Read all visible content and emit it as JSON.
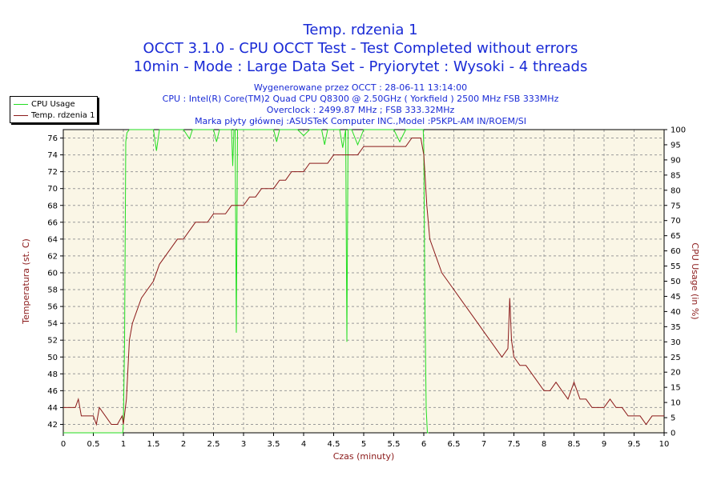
{
  "header": {
    "title": "Temp. rdzenia 1",
    "subtitle1": "OCCT 3.1.0 - CPU OCCT Test - Test Completed without errors",
    "subtitle2": "10min - Mode : Large Data Set - Pryiorytet : Wysoki - 4 threads"
  },
  "info": {
    "generated": "Wygenerowane przez OCCT : 28-06-11 13:14:00",
    "cpu": "CPU : Intel(R) Core(TM)2 Quad CPU Q8300 @ 2.50GHz ( Yorkfield ) 2500 MHz FSB 333MHz",
    "overclock": "Overclock : 2499.87 MHz ; FSB 333.32MHz",
    "board": "Marka płyty głównej :ASUSTeK Computer INC.,Model :P5KPL-AM IN/ROEM/SI"
  },
  "colors": {
    "cpu_usage": "#22dd22",
    "temp": "#8b1a1a",
    "plot_bg": "#faf6e6",
    "grid": "#9a9a9a"
  },
  "chart_data": {
    "type": "line",
    "xlabel": "Czas (minuty)",
    "ylabel_left": "Temperatura (st. C)",
    "ylabel_right": "CPU Usage (in %)",
    "xlim": [
      0,
      10
    ],
    "ylim_left": [
      41,
      77
    ],
    "ylim_right": [
      0,
      100
    ],
    "x_ticks": [
      "0",
      "0.5",
      "1",
      "1.5",
      "2",
      "2.5",
      "3",
      "3.5",
      "4",
      "4.5",
      "5",
      "5.5",
      "6",
      "6.5",
      "7",
      "7.5",
      "8",
      "8.5",
      "9",
      "9.5",
      "10"
    ],
    "y_left_ticks": [
      "42",
      "44",
      "46",
      "48",
      "50",
      "52",
      "54",
      "56",
      "58",
      "60",
      "62",
      "64",
      "66",
      "68",
      "70",
      "72",
      "74",
      "76"
    ],
    "y_right_ticks": [
      "0",
      "5",
      "10",
      "15",
      "20",
      "25",
      "30",
      "35",
      "40",
      "45",
      "50",
      "55",
      "60",
      "65",
      "70",
      "75",
      "80",
      "85",
      "90",
      "95",
      "100"
    ],
    "grid": true,
    "legend_position": "top-left",
    "series": [
      {
        "name": "CPU Usage",
        "axis": "right",
        "points": [
          [
            0,
            0
          ],
          [
            0.99,
            0
          ],
          [
            1.0,
            3
          ],
          [
            1.02,
            30
          ],
          [
            1.04,
            96
          ],
          [
            1.06,
            99
          ],
          [
            1.1,
            100
          ],
          [
            1.5,
            100
          ],
          [
            1.55,
            93
          ],
          [
            1.6,
            100
          ],
          [
            2.0,
            100
          ],
          [
            2.1,
            97
          ],
          [
            2.15,
            100
          ],
          [
            2.5,
            100
          ],
          [
            2.55,
            96
          ],
          [
            2.6,
            100
          ],
          [
            2.8,
            100
          ],
          [
            2.82,
            88
          ],
          [
            2.84,
            100
          ],
          [
            2.86,
            100
          ],
          [
            2.88,
            33
          ],
          [
            2.9,
            100
          ],
          [
            3.1,
            100
          ],
          [
            3.5,
            100
          ],
          [
            3.55,
            96
          ],
          [
            3.6,
            100
          ],
          [
            3.9,
            100
          ],
          [
            4.0,
            98
          ],
          [
            4.1,
            100
          ],
          [
            4.3,
            100
          ],
          [
            4.35,
            95
          ],
          [
            4.4,
            100
          ],
          [
            4.6,
            100
          ],
          [
            4.65,
            94
          ],
          [
            4.7,
            100
          ],
          [
            4.72,
            30
          ],
          [
            4.74,
            100
          ],
          [
            4.8,
            100
          ],
          [
            4.9,
            95
          ],
          [
            5.0,
            100
          ],
          [
            5.5,
            100
          ],
          [
            5.6,
            96
          ],
          [
            5.7,
            100
          ],
          [
            5.99,
            100
          ],
          [
            6.0,
            94
          ],
          [
            6.02,
            40
          ],
          [
            6.04,
            8
          ],
          [
            6.06,
            0
          ],
          [
            6.08,
            0
          ]
        ]
      },
      {
        "name": "Temp. rdzenia 1",
        "axis": "left",
        "points": [
          [
            0,
            44
          ],
          [
            0.2,
            44
          ],
          [
            0.25,
            45
          ],
          [
            0.3,
            43
          ],
          [
            0.5,
            43
          ],
          [
            0.55,
            42
          ],
          [
            0.6,
            44
          ],
          [
            0.7,
            43
          ],
          [
            0.8,
            42
          ],
          [
            0.9,
            42
          ],
          [
            0.98,
            43
          ],
          [
            1.0,
            42
          ],
          [
            1.05,
            45
          ],
          [
            1.1,
            52
          ],
          [
            1.15,
            54
          ],
          [
            1.2,
            55
          ],
          [
            1.3,
            57
          ],
          [
            1.4,
            58
          ],
          [
            1.5,
            59
          ],
          [
            1.6,
            61
          ],
          [
            1.7,
            62
          ],
          [
            1.8,
            63
          ],
          [
            1.9,
            64
          ],
          [
            2.0,
            64
          ],
          [
            2.1,
            65
          ],
          [
            2.2,
            66
          ],
          [
            2.3,
            66
          ],
          [
            2.4,
            66
          ],
          [
            2.5,
            67
          ],
          [
            2.6,
            67
          ],
          [
            2.7,
            67
          ],
          [
            2.8,
            68
          ],
          [
            2.9,
            68
          ],
          [
            3.0,
            68
          ],
          [
            3.1,
            69
          ],
          [
            3.2,
            69
          ],
          [
            3.3,
            70
          ],
          [
            3.4,
            70
          ],
          [
            3.5,
            70
          ],
          [
            3.6,
            71
          ],
          [
            3.7,
            71
          ],
          [
            3.8,
            72
          ],
          [
            3.9,
            72
          ],
          [
            4.0,
            72
          ],
          [
            4.1,
            73
          ],
          [
            4.2,
            73
          ],
          [
            4.3,
            73
          ],
          [
            4.4,
            73
          ],
          [
            4.5,
            74
          ],
          [
            4.6,
            74
          ],
          [
            4.7,
            74
          ],
          [
            4.8,
            74
          ],
          [
            4.9,
            74
          ],
          [
            5.0,
            75
          ],
          [
            5.1,
            75
          ],
          [
            5.2,
            75
          ],
          [
            5.3,
            75
          ],
          [
            5.4,
            75
          ],
          [
            5.5,
            75
          ],
          [
            5.6,
            75
          ],
          [
            5.7,
            75
          ],
          [
            5.8,
            76
          ],
          [
            5.9,
            76
          ],
          [
            5.95,
            76
          ],
          [
            6.0,
            74
          ],
          [
            6.05,
            68
          ],
          [
            6.1,
            64
          ],
          [
            6.2,
            62
          ],
          [
            6.3,
            60
          ],
          [
            6.4,
            59
          ],
          [
            6.5,
            58
          ],
          [
            6.6,
            57
          ],
          [
            6.7,
            56
          ],
          [
            6.8,
            55
          ],
          [
            6.9,
            54
          ],
          [
            7.0,
            53
          ],
          [
            7.1,
            52
          ],
          [
            7.2,
            51
          ],
          [
            7.3,
            50
          ],
          [
            7.4,
            51
          ],
          [
            7.43,
            57
          ],
          [
            7.46,
            52
          ],
          [
            7.5,
            50
          ],
          [
            7.6,
            49
          ],
          [
            7.7,
            49
          ],
          [
            7.8,
            48
          ],
          [
            7.9,
            47
          ],
          [
            8.0,
            46
          ],
          [
            8.1,
            46
          ],
          [
            8.2,
            47
          ],
          [
            8.3,
            46
          ],
          [
            8.4,
            45
          ],
          [
            8.5,
            47
          ],
          [
            8.6,
            45
          ],
          [
            8.7,
            45
          ],
          [
            8.8,
            44
          ],
          [
            8.9,
            44
          ],
          [
            9.0,
            44
          ],
          [
            9.1,
            45
          ],
          [
            9.2,
            44
          ],
          [
            9.3,
            44
          ],
          [
            9.4,
            43
          ],
          [
            9.5,
            43
          ],
          [
            9.6,
            43
          ],
          [
            9.7,
            42
          ],
          [
            9.8,
            43
          ],
          [
            9.9,
            43
          ],
          [
            10.0,
            43
          ]
        ]
      }
    ]
  }
}
